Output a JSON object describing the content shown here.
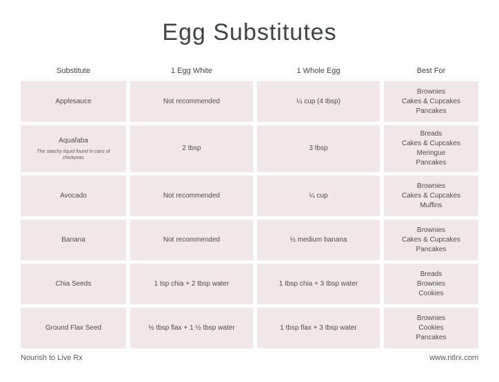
{
  "title": "Egg Substitutes",
  "columns": [
    "Substitute",
    "1 Egg White",
    "1 Whole Egg",
    "Best For"
  ],
  "rows": [
    {
      "name": "Applesauce",
      "egg_white": "Not recommended",
      "whole_egg": "¼ cup (4 tbsp)",
      "best_for": "Brownies\nCakes & Cupcakes\nPancakes"
    },
    {
      "name": "Aquafaba",
      "note": "The starchy liquid found in cans of chickpeas",
      "egg_white": "2 tbsp",
      "whole_egg": "3 tbsp",
      "best_for": "Breads\nCakes & Cupcakes\nMeringue\nPancakes"
    },
    {
      "name": "Avocado",
      "egg_white": "Not recommended",
      "whole_egg": "¼ cup",
      "best_for": "Brownies\nCakes & Cupcakes\nMuffins"
    },
    {
      "name": "Banana",
      "egg_white": "Not recommended",
      "whole_egg": "½ medium banana",
      "best_for": "Brownies\nCakes & Cupcakes\nPancakes"
    },
    {
      "name": "Chia Seeds",
      "egg_white": "1 tsp chia + 2 tbsp water",
      "whole_egg": "1 tbsp chia + 3 tbsp water",
      "best_for": "Breads\nBrownies\nCookies"
    },
    {
      "name": "Ground Flax Seed",
      "egg_white": "½ tbsp flax + 1 ½ tbsp water",
      "whole_egg": "1 tbsp flax + 3 tbsp water",
      "best_for": "Brownies\nCookies\nPancakes"
    }
  ],
  "footer": {
    "left": "Nourish to Live Rx",
    "right": "www.ntlrx.com"
  },
  "colors": {
    "cell_bg": "#f2e7e8",
    "title_text": "#3e4444",
    "cell_text": "#4d4d4d"
  }
}
